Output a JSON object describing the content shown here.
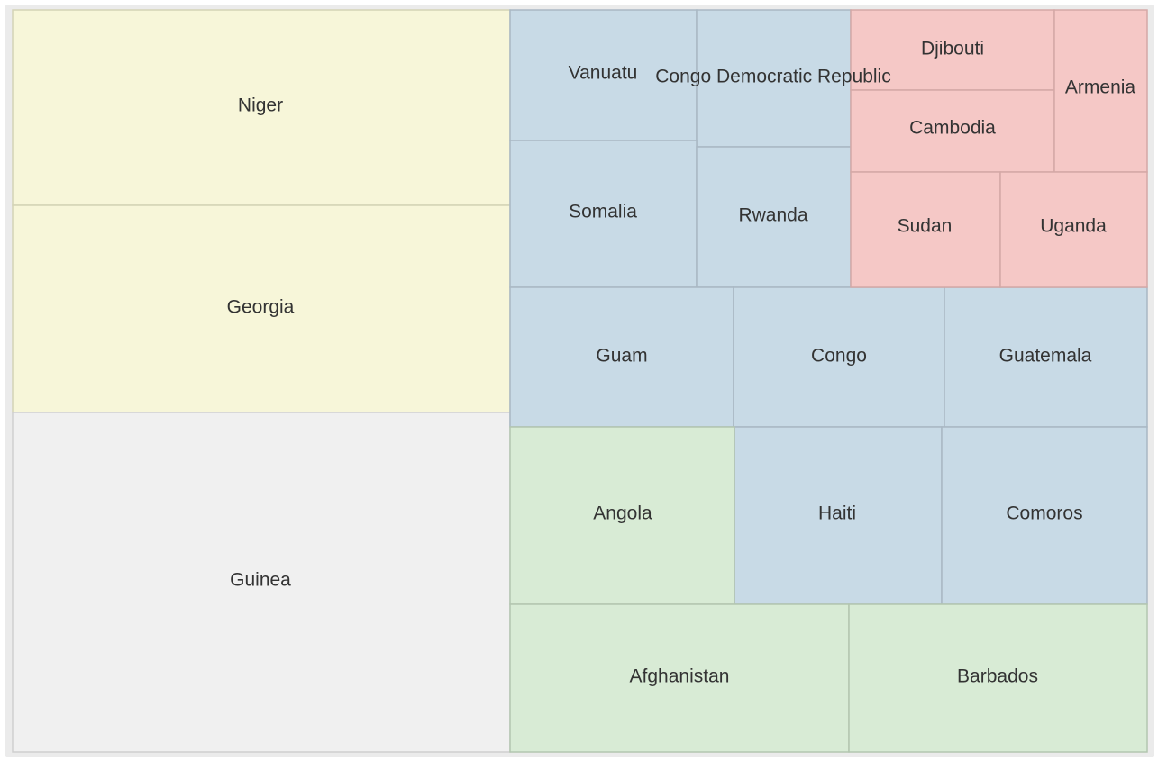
{
  "chart_data": {
    "type": "treemap",
    "title": "",
    "groups": [
      {
        "color": "#f7f6d9",
        "stroke": "#d4d3b6",
        "items": [
          {
            "label": "Niger",
            "value": 119.0
          },
          {
            "label": "Georgia",
            "value": 126.4
          }
        ]
      },
      {
        "color": "#f0f0f0",
        "stroke": "#cfcfcf",
        "items": [
          {
            "label": "Guinea",
            "value": 207.3
          }
        ]
      },
      {
        "color": "#c8dae6",
        "stroke": "#a9b8c4",
        "items": [
          {
            "label": "Vanuatu",
            "value": 29.6
          },
          {
            "label": "Congo Democratic Republic",
            "value": 25.8
          },
          {
            "label": "Somalia",
            "value": 33.3
          },
          {
            "label": "Rwanda",
            "value": 27.2
          },
          {
            "label": "Guam",
            "value": 38.0
          },
          {
            "label": "Congo",
            "value": 36.3
          },
          {
            "label": "Guatemala",
            "value": 34.7
          },
          {
            "label": "Haiti",
            "value": 44.7
          },
          {
            "label": "Comoros",
            "value": 44.5
          }
        ]
      },
      {
        "color": "#f5c8c6",
        "stroke": "#d4a8a6",
        "items": [
          {
            "label": "Djibouti",
            "value": 19.9
          },
          {
            "label": "Cambodia",
            "value": 20.6
          },
          {
            "label": "Armenia",
            "value": 10.0
          },
          {
            "label": "Sudan",
            "value": 21.1
          },
          {
            "label": "Uganda",
            "value": 20.5
          }
        ]
      },
      {
        "color": "#d8ebd5",
        "stroke": "#b3c6b0",
        "items": [
          {
            "label": "Angola",
            "value": 48.2
          },
          {
            "label": "Afghanistan",
            "value": 61.2
          },
          {
            "label": "Barbados",
            "value": 54.1
          }
        ]
      }
    ]
  }
}
